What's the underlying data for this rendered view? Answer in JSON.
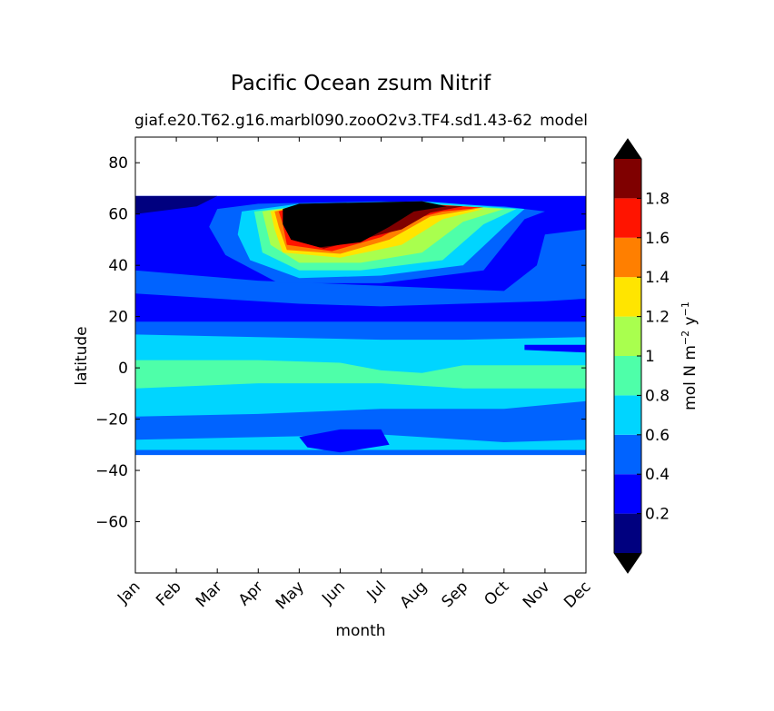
{
  "chart_data": {
    "type": "heatmap",
    "title": "Pacific Ocean zsum Nitrif",
    "subtitle_left": "giaf.e20.T62.g16.marbl090.zooO2v3.TF4.sd1.43-62",
    "subtitle_right": "model",
    "xlabel": "month",
    "ylabel": "latitude",
    "x_categories": [
      "Jan",
      "Feb",
      "Mar",
      "Apr",
      "May",
      "Jun",
      "Jul",
      "Aug",
      "Sep",
      "Oct",
      "Nov",
      "Dec"
    ],
    "xlim": [
      0,
      11
    ],
    "ylim": [
      -80,
      90
    ],
    "yticks": [
      -60,
      -40,
      -20,
      0,
      20,
      40,
      60,
      80
    ],
    "ytick_labels": [
      "−60",
      "−40",
      "−20",
      "0",
      "20",
      "40",
      "60",
      "80"
    ],
    "data_lat_range": [
      -34,
      67
    ],
    "colorbar": {
      "label": "mol N m⁻² y⁻¹",
      "label_base": "mol N m",
      "label_exp1": "−2",
      "label_mid": " y",
      "label_exp2": "−1",
      "levels": [
        0,
        0.2,
        0.4,
        0.6,
        0.8,
        1.0,
        1.2,
        1.4,
        1.6,
        1.8,
        2.0
      ],
      "tick_values": [
        0.2,
        0.4,
        0.6,
        0.8,
        1.0,
        1.2,
        1.4,
        1.6,
        1.8
      ],
      "tick_labels": [
        "0.2",
        "0.4",
        "0.6",
        "0.8",
        "1",
        "1.2",
        "1.4",
        "1.6",
        "1.8"
      ],
      "colors": [
        "#00007f",
        "#0000ff",
        "#0063ff",
        "#00d5ff",
        "#4effa9",
        "#a9ff4e",
        "#ffe500",
        "#ff7f00",
        "#ff1400",
        "#7f0000"
      ],
      "under_color": "#000000",
      "over_color": "#000000",
      "extend": "both"
    },
    "contour_regions": [
      {
        "level": 0.2,
        "value": 0.3,
        "note": "background band"
      },
      {
        "level": 0.6,
        "value": 0.7
      },
      {
        "level": 0.8,
        "value": 0.9
      }
    ]
  }
}
